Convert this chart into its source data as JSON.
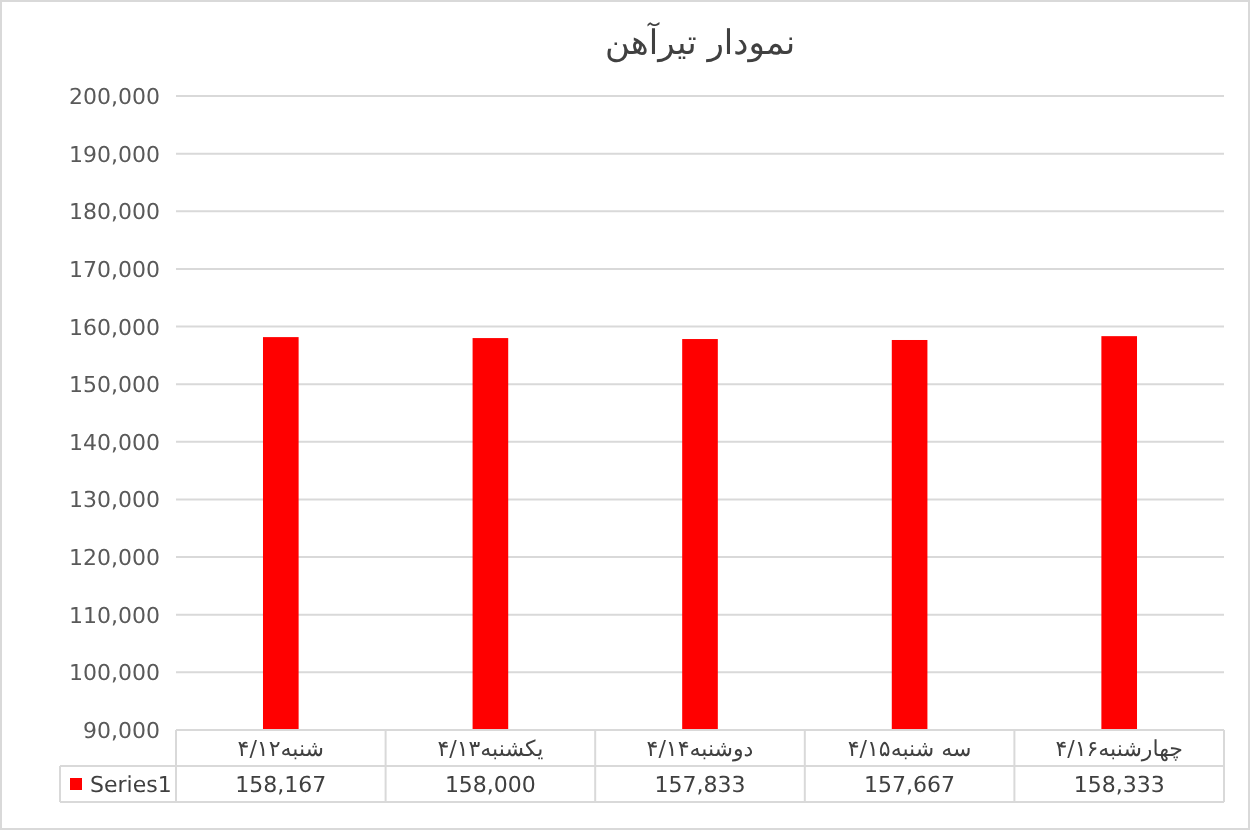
{
  "chart_data": {
    "type": "bar",
    "title": "نمودار تیرآهن",
    "categories": [
      "شنبه۴/۱۲",
      "یکشنبه۴/۱۳",
      "دوشنبه۴/۱۴",
      "سه شنبه۴/۱۵",
      "چهارشنبه۴/۱۶"
    ],
    "series": [
      {
        "name": "Series1",
        "color": "#ff0000",
        "values": [
          158167,
          158000,
          157833,
          157667,
          158333
        ],
        "value_labels": [
          "158,167",
          "158,000",
          "157,833",
          "157,667",
          "158,333"
        ]
      }
    ],
    "ylim": [
      90000,
      200000
    ],
    "yticks": [
      {
        "value": 90000,
        "label": "90,000"
      },
      {
        "value": 100000,
        "label": "100,000"
      },
      {
        "value": 110000,
        "label": "110,000"
      },
      {
        "value": 120000,
        "label": "120,000"
      },
      {
        "value": 130000,
        "label": "130,000"
      },
      {
        "value": 140000,
        "label": "140,000"
      },
      {
        "value": 150000,
        "label": "150,000"
      },
      {
        "value": 160000,
        "label": "160,000"
      },
      {
        "value": 170000,
        "label": "170,000"
      },
      {
        "value": 180000,
        "label": "180,000"
      },
      {
        "value": 190000,
        "label": "190,000"
      },
      {
        "value": 200000,
        "label": "200,000"
      }
    ],
    "grid": "y",
    "legend": "bottom"
  }
}
